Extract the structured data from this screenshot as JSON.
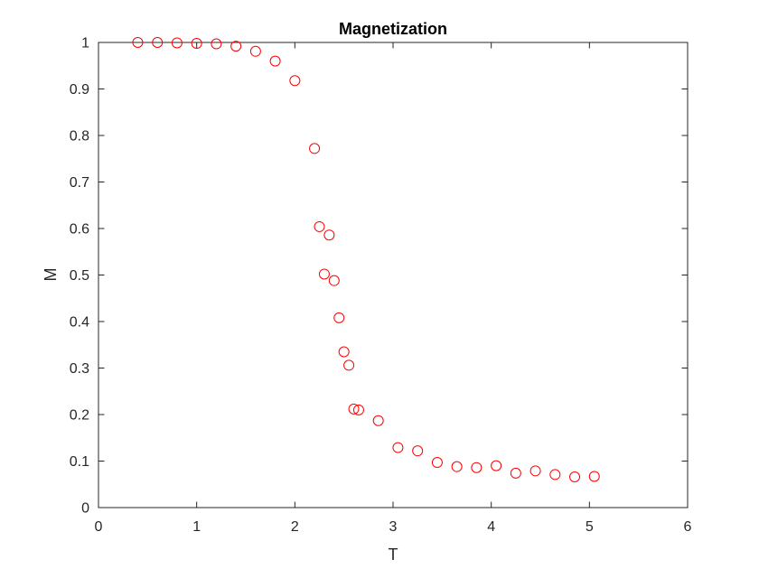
{
  "chart_data": {
    "type": "scatter",
    "title": "Magnetization",
    "xlabel": "T",
    "ylabel": "M",
    "xlim": [
      0,
      6
    ],
    "ylim": [
      0,
      1
    ],
    "xticks": [
      "0",
      "1",
      "2",
      "3",
      "4",
      "5",
      "6"
    ],
    "yticks": [
      "0",
      "0.1",
      "0.2",
      "0.3",
      "0.4",
      "0.5",
      "0.6",
      "0.7",
      "0.8",
      "0.9",
      "1"
    ],
    "grid": false,
    "marker": "circle-open",
    "marker_color": "#ff0000",
    "series": [
      {
        "x": [
          0.4,
          0.6,
          0.8,
          1.0,
          1.2,
          1.4,
          1.6,
          1.8,
          2.0,
          2.2,
          2.25,
          2.3,
          2.35,
          2.4,
          2.45,
          2.5,
          2.55,
          2.6,
          2.65,
          2.85,
          3.05,
          3.25,
          3.45,
          3.65,
          3.85,
          4.05,
          4.25,
          4.45,
          4.65,
          4.85,
          5.05
        ],
        "y": [
          1.0,
          1.0,
          0.999,
          0.998,
          0.997,
          0.992,
          0.981,
          0.96,
          0.918,
          0.772,
          0.604,
          0.502,
          0.586,
          0.488,
          0.408,
          0.335,
          0.306,
          0.212,
          0.21,
          0.187,
          0.129,
          0.122,
          0.097,
          0.088,
          0.086,
          0.09,
          0.074,
          0.079,
          0.071,
          0.066,
          0.067
        ]
      }
    ]
  }
}
